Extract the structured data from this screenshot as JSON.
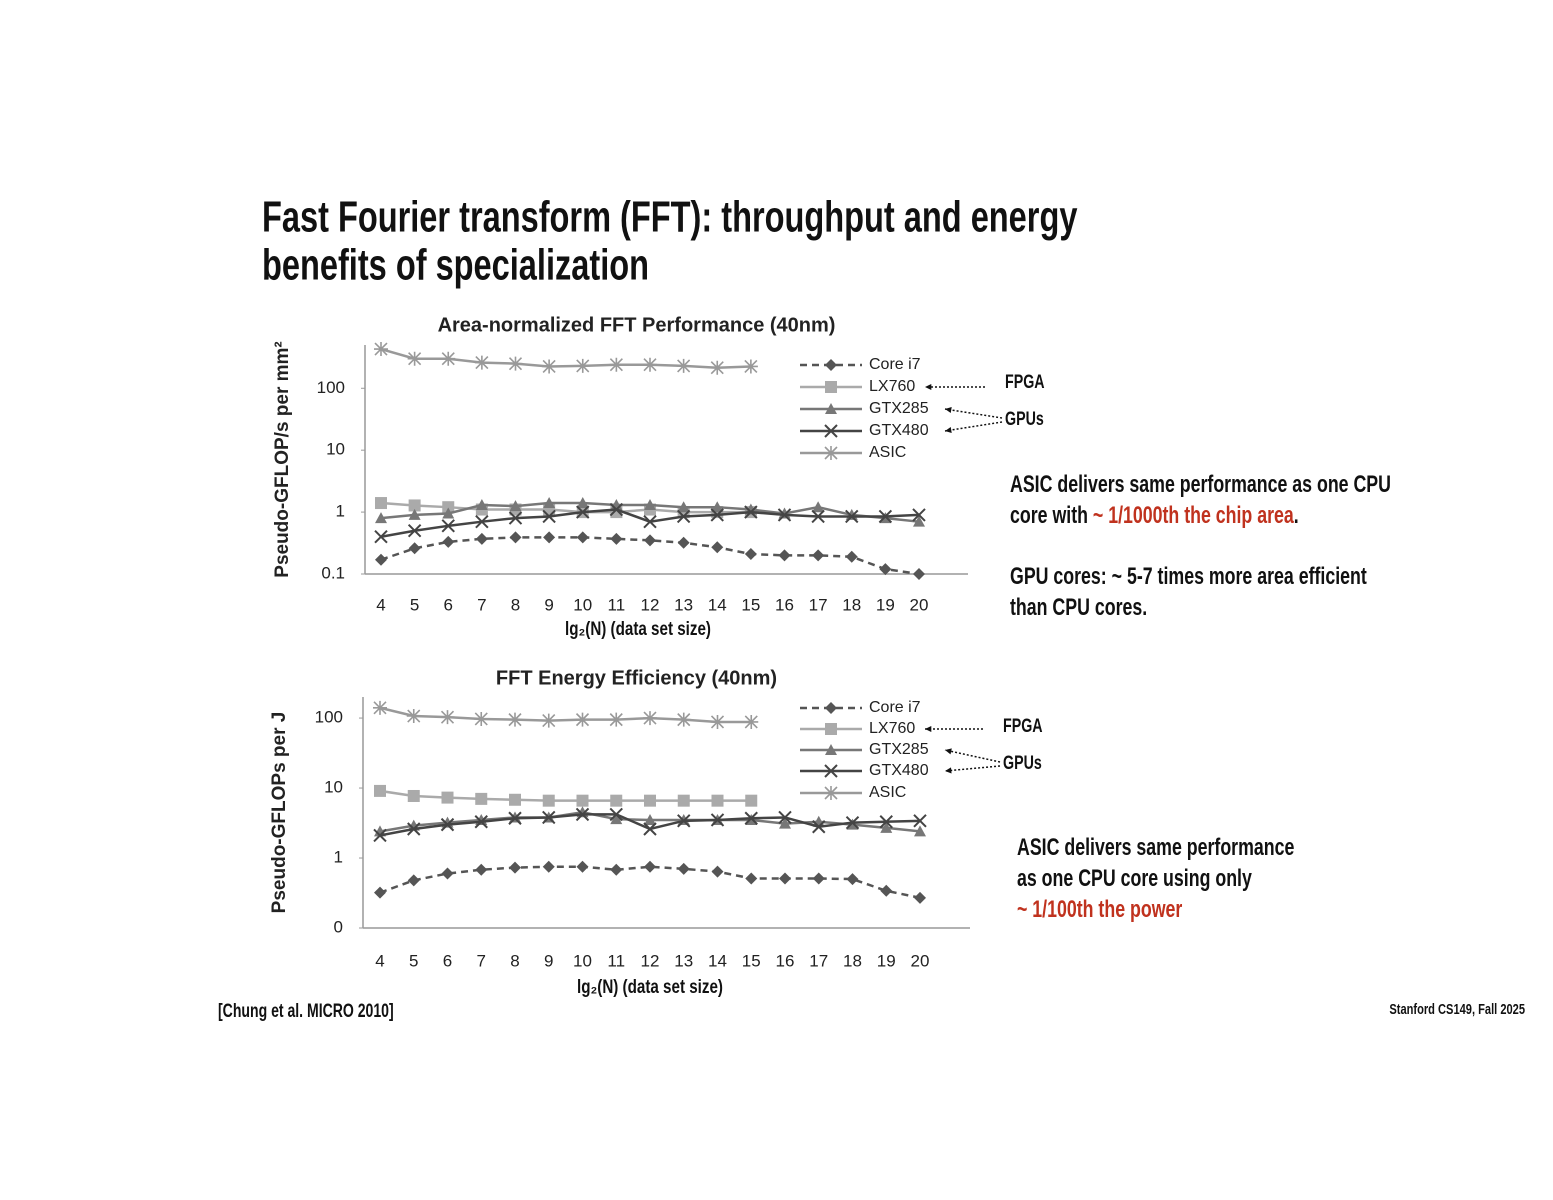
{
  "title": [
    "Fast Fourier transform (FFT): throughput and energy",
    "benefits of specialization"
  ],
  "citation": "[Chung et al. MICRO 2010]",
  "footer": "Stanford CS149, Fall 2025",
  "chart_data": [
    {
      "type": "line",
      "title": "Area-normalized FFT Performance (40nm)",
      "y_label": "Pseudo-GFLOP/s per mm²",
      "x_label": "lg₂(N)  (data set size)",
      "log_y": true,
      "ylim": [
        0.1,
        500
      ],
      "yticks": [
        0.1,
        1,
        10,
        100
      ],
      "categories": [
        "4",
        "5",
        "6",
        "7",
        "8",
        "9",
        "10",
        "11",
        "12",
        "13",
        "14",
        "15",
        "16",
        "17",
        "18",
        "19",
        "20"
      ],
      "series": [
        {
          "name": "Core i7",
          "color": "#555555",
          "dash": true,
          "marker": "diamond",
          "values": [
            0.17,
            0.26,
            0.33,
            0.37,
            0.39,
            0.39,
            0.39,
            0.37,
            0.35,
            0.32,
            0.27,
            0.21,
            0.2,
            0.2,
            0.19,
            0.12,
            0.1
          ]
        },
        {
          "name": "LX760",
          "color": "#aaaaaa",
          "dash": false,
          "marker": "square",
          "values": [
            1.4,
            1.28,
            1.2,
            1.1,
            1.1,
            1.1,
            1.0,
            1.0,
            1.1,
            1.0,
            1.0,
            1.0,
            null,
            null,
            null,
            null,
            null
          ]
        },
        {
          "name": "GTX285",
          "color": "#777777",
          "dash": false,
          "marker": "triangle",
          "values": [
            0.8,
            0.9,
            0.95,
            1.3,
            1.25,
            1.4,
            1.4,
            1.3,
            1.3,
            1.2,
            1.2,
            1.1,
            0.95,
            1.2,
            0.9,
            0.8,
            0.7
          ]
        },
        {
          "name": "GTX480",
          "color": "#444444",
          "dash": false,
          "marker": "x",
          "values": [
            0.4,
            0.5,
            0.6,
            0.7,
            0.8,
            0.85,
            1.0,
            1.1,
            0.7,
            0.85,
            0.9,
            1.0,
            0.9,
            0.85,
            0.85,
            0.85,
            0.9
          ]
        },
        {
          "name": "ASIC",
          "color": "#999999",
          "dash": false,
          "marker": "asterisk",
          "values": [
            430,
            300,
            300,
            260,
            250,
            225,
            230,
            240,
            240,
            230,
            215,
            225,
            null,
            null,
            null,
            null,
            null
          ]
        }
      ],
      "annotations": [
        "FPGA",
        "GPUs"
      ],
      "notes": [
        [
          [
            {
              "text": "ASIC delivers same performance as one CPU"
            }
          ],
          [
            {
              "text": "core with "
            },
            {
              "text": "~ 1/1000th the chip area",
              "color": "#c0321e"
            },
            {
              "text": "."
            }
          ]
        ],
        [
          [
            {
              "text": "GPU cores: ~ 5-7 times more area efficient"
            }
          ],
          [
            {
              "text": "than CPU cores."
            }
          ]
        ]
      ]
    },
    {
      "type": "line",
      "title": "FFT Energy Efficiency (40nm)",
      "y_label": "Pseudo-GFLOPs per J",
      "x_label": "lg₂(N)  (data set size)",
      "log_y": true,
      "ylim": [
        0.1,
        200
      ],
      "yticks": [
        {
          "value": 0.1,
          "label": "0"
        },
        1,
        10,
        100
      ],
      "categories": [
        "4",
        "5",
        "6",
        "7",
        "8",
        "9",
        "10",
        "11",
        "12",
        "13",
        "14",
        "15",
        "16",
        "17",
        "18",
        "19",
        "20"
      ],
      "series": [
        {
          "name": "Core i7",
          "color": "#555555",
          "dash": true,
          "marker": "diamond",
          "values": [
            0.32,
            0.48,
            0.6,
            0.68,
            0.73,
            0.75,
            0.75,
            0.68,
            0.75,
            0.7,
            0.64,
            0.51,
            0.51,
            0.51,
            0.5,
            0.34,
            0.27
          ]
        },
        {
          "name": "LX760",
          "color": "#aaaaaa",
          "dash": false,
          "marker": "square",
          "values": [
            9.1,
            7.7,
            7.3,
            7.0,
            6.8,
            6.6,
            6.6,
            6.6,
            6.6,
            6.6,
            6.6,
            6.6,
            null,
            null,
            null,
            null,
            null
          ]
        },
        {
          "name": "GTX285",
          "color": "#777777",
          "dash": false,
          "marker": "triangle",
          "values": [
            2.4,
            2.9,
            3.2,
            3.5,
            3.8,
            3.8,
            4.5,
            3.6,
            3.5,
            3.5,
            3.5,
            3.5,
            3.1,
            3.3,
            3.0,
            2.7,
            2.4
          ]
        },
        {
          "name": "GTX480",
          "color": "#444444",
          "dash": false,
          "marker": "x",
          "values": [
            2.1,
            2.6,
            3.0,
            3.3,
            3.7,
            3.8,
            4.2,
            4.2,
            2.6,
            3.4,
            3.5,
            3.7,
            3.8,
            2.8,
            3.2,
            3.3,
            3.4
          ]
        },
        {
          "name": "ASIC",
          "color": "#999999",
          "dash": false,
          "marker": "asterisk",
          "values": [
            140,
            107,
            103,
            97,
            95,
            92,
            95,
            95,
            100,
            95,
            88,
            88,
            null,
            null,
            null,
            null,
            null
          ]
        }
      ],
      "annotations": [
        "FPGA",
        "GPUs"
      ],
      "notes": [
        [
          [
            {
              "text": "ASIC delivers same performance"
            }
          ],
          [
            {
              "text": "as one CPU core using only"
            }
          ],
          [
            {
              "text": "~ 1/100th the power",
              "color": "#c0321e"
            }
          ]
        ]
      ]
    }
  ]
}
